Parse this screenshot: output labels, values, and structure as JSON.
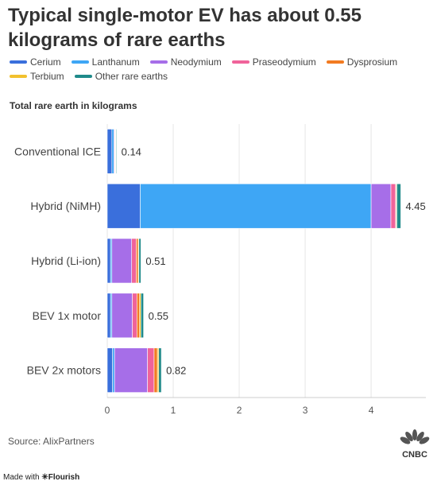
{
  "title": "Typical single-motor EV has about 0.55 kilograms of rare earths",
  "subtitle": "Total rare earth in kilograms",
  "source": "Source: AlixPartners",
  "footer": {
    "made_with": "Made with",
    "brand": "✳Flourish"
  },
  "logo": {
    "name": "CNBC"
  },
  "chart_data": {
    "type": "bar",
    "orientation": "horizontal",
    "stacked": true,
    "categories": [
      "Conventional ICE",
      "Hybrid (NiMH)",
      "Hybrid (Li-ion)",
      "BEV 1x motor",
      "BEV 2x motors"
    ],
    "totals_labels": [
      "0.14",
      "4.45",
      "0.51",
      "0.55",
      "0.82"
    ],
    "series": [
      {
        "name": "Cerium",
        "color": "#3a6fdc",
        "values": [
          0.07,
          0.5,
          0.05,
          0.05,
          0.08
        ]
      },
      {
        "name": "Lanthanum",
        "color": "#3ea6f5",
        "values": [
          0.03,
          3.5,
          0.02,
          0.02,
          0.03
        ]
      },
      {
        "name": "Neodymium",
        "color": "#a66ee8",
        "values": [
          0.01,
          0.3,
          0.3,
          0.31,
          0.5
        ]
      },
      {
        "name": "Praseodymium",
        "color": "#f0639a",
        "values": [
          0.01,
          0.07,
          0.07,
          0.07,
          0.1
        ]
      },
      {
        "name": "Dysprosium",
        "color": "#f27b21",
        "values": [
          0.005,
          0.01,
          0.03,
          0.04,
          0.05
        ]
      },
      {
        "name": "Terbium",
        "color": "#f2c12e",
        "values": [
          0.005,
          0.01,
          0.01,
          0.02,
          0.02
        ]
      },
      {
        "name": "Other rare earths",
        "color": "#1f8a8a",
        "values": [
          0.01,
          0.06,
          0.03,
          0.04,
          0.04
        ]
      }
    ],
    "x_ticks": [
      "0",
      "1",
      "2",
      "3",
      "4"
    ],
    "xlim": [
      0,
      4.83
    ],
    "xlabel": "",
    "ylabel": "",
    "legend_position": "top",
    "grid": "vertical"
  }
}
